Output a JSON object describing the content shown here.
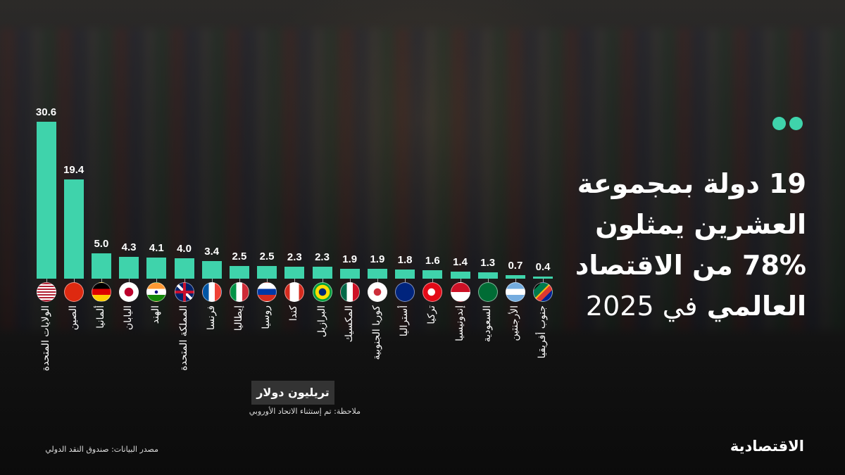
{
  "title": {
    "line1": "19 دولة بمجموعة",
    "line2": "العشرين يمثلون",
    "line3": "78% من الاقتصاد",
    "line4_bold": "العالمي",
    "line4_light": "في 2025"
  },
  "chart_data": {
    "type": "bar",
    "categories": [
      "الولايات المتحدة",
      "الصين",
      "ألمانيا",
      "اليابان",
      "الهند",
      "المملكة المتحدة",
      "فرنسا",
      "إيطاليا",
      "روسيا",
      "كندا",
      "البرازيل",
      "المكسيك",
      "كوريا الجنوبية",
      "أستراليا",
      "تركيا",
      "إندونيسيا",
      "السعودية",
      "الأرجنتين",
      "جنوب أفريقيا"
    ],
    "values": [
      30.6,
      19.4,
      5.0,
      4.3,
      4.1,
      4.0,
      3.4,
      2.5,
      2.5,
      2.3,
      2.3,
      1.9,
      1.9,
      1.8,
      1.6,
      1.4,
      1.3,
      0.7,
      0.4
    ],
    "value_labels": [
      "30.6",
      "19.4",
      "5.0",
      "4.3",
      "4.1",
      "4.0",
      "3.4",
      "2.5",
      "2.5",
      "2.3",
      "2.3",
      "1.9",
      "1.9",
      "1.8",
      "1.6",
      "1.4",
      "1.3",
      "0.7",
      "0.4"
    ],
    "flag_icons": [
      "us",
      "cn",
      "de",
      "jp",
      "in",
      "gb",
      "fr",
      "it",
      "ru",
      "ca",
      "br",
      "mx",
      "kr",
      "au",
      "tr",
      "id",
      "sa",
      "ar",
      "za"
    ],
    "ylabel": "تريليون دولار",
    "ylim": [
      0,
      31
    ],
    "grid": false,
    "bar_color": "#3fd3ab"
  },
  "note": "ملاحظة: تم إستثناء الاتحاد الأوروبي",
  "source": "مصدر البيانات: صندوق النقد الدولي",
  "logo": "الاقتصادية",
  "accent_color": "#3fd3ab"
}
